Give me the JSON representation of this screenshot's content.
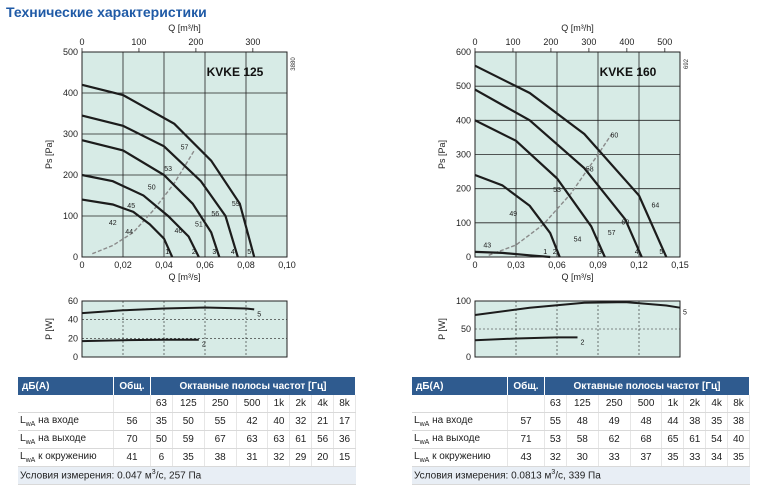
{
  "title": "Технические характеристики",
  "chart_data": [
    {
      "type": "line",
      "title": "KVKE 125",
      "code": "3880",
      "xlabel": "Q [m³/s]",
      "xlabel_top": "Q [m³/h]",
      "ylabel": "Ps [Pa]",
      "xlim": [
        0,
        0.1
      ],
      "ylim": [
        0,
        500
      ],
      "x_ticks": [
        "0",
        "0,02",
        "0,04",
        "0,06",
        "0,08",
        "0,10"
      ],
      "y_ticks": [
        "0",
        "100",
        "200",
        "300",
        "400",
        "500"
      ],
      "top_ticks": [
        "0",
        "100",
        "200",
        "300"
      ],
      "top_scale_max": 360,
      "grid": true,
      "series": [
        {
          "label_end": "1",
          "points": [
            [
              0,
              140
            ],
            [
              0.015,
              128
            ],
            [
              0.025,
              110
            ],
            [
              0.033,
              80
            ],
            [
              0.04,
              45
            ],
            [
              0.044,
              0
            ]
          ]
        },
        {
          "label_end": "2",
          "points": [
            [
              0,
              200
            ],
            [
              0.015,
              185
            ],
            [
              0.03,
              150
            ],
            [
              0.042,
              100
            ],
            [
              0.052,
              50
            ],
            [
              0.057,
              0
            ]
          ]
        },
        {
          "label_end": "3",
          "points": [
            [
              0,
              285
            ],
            [
              0.02,
              260
            ],
            [
              0.04,
              200
            ],
            [
              0.054,
              130
            ],
            [
              0.063,
              60
            ],
            [
              0.067,
              0
            ]
          ]
        },
        {
          "label_end": "4",
          "points": [
            [
              0,
              345
            ],
            [
              0.02,
              320
            ],
            [
              0.04,
              270
            ],
            [
              0.058,
              185
            ],
            [
              0.07,
              100
            ],
            [
              0.076,
              0
            ]
          ]
        },
        {
          "label_end": "5",
          "points": [
            [
              0,
              420
            ],
            [
              0.02,
              395
            ],
            [
              0.045,
              325
            ],
            [
              0.063,
              235
            ],
            [
              0.077,
              130
            ],
            [
              0.084,
              0
            ]
          ]
        }
      ],
      "system_curve": {
        "points": [
          [
            0.005,
            8
          ],
          [
            0.015,
            28
          ],
          [
            0.025,
            60
          ],
          [
            0.035,
            115
          ],
          [
            0.045,
            180
          ],
          [
            0.055,
            262
          ]
        ]
      },
      "sound_labels": [
        {
          "text": "42",
          "x": 0.015,
          "y": 78
        },
        {
          "text": "44",
          "x": 0.023,
          "y": 56
        },
        {
          "text": "45",
          "x": 0.024,
          "y": 120
        },
        {
          "text": "46",
          "x": 0.047,
          "y": 58
        },
        {
          "text": "50",
          "x": 0.034,
          "y": 165
        },
        {
          "text": "51",
          "x": 0.057,
          "y": 75
        },
        {
          "text": "53",
          "x": 0.042,
          "y": 210
        },
        {
          "text": "56",
          "x": 0.065,
          "y": 100
        },
        {
          "text": "57",
          "x": 0.05,
          "y": 262
        },
        {
          "text": "59",
          "x": 0.075,
          "y": 125
        }
      ],
      "power_chart": {
        "ylabel": "P [W]",
        "ylim": [
          0,
          60
        ],
        "y_ticks": [
          "0",
          "20",
          "40",
          "60"
        ],
        "series": [
          {
            "label_end": "5",
            "points": [
              [
                0,
                47
              ],
              [
                0.02,
                50
              ],
              [
                0.04,
                52
              ],
              [
                0.06,
                53
              ],
              [
                0.08,
                52
              ],
              [
                0.084,
                51
              ]
            ]
          },
          {
            "label_end": "2",
            "points": [
              [
                0,
                17
              ],
              [
                0.02,
                18
              ],
              [
                0.04,
                18.5
              ],
              [
                0.057,
                18.5
              ]
            ]
          }
        ]
      }
    },
    {
      "type": "line",
      "title": "KVKE 160",
      "code": "692",
      "xlabel": "Q [m³/s]",
      "xlabel_top": "Q [m³/h]",
      "ylabel": "Ps [Pa]",
      "xlim": [
        0,
        0.15
      ],
      "ylim": [
        0,
        600
      ],
      "x_ticks": [
        "0",
        "0,03",
        "0,06",
        "0,09",
        "0,12",
        "0,15"
      ],
      "y_ticks": [
        "0",
        "100",
        "200",
        "300",
        "400",
        "500",
        "600"
      ],
      "top_ticks": [
        "0",
        "100",
        "200",
        "300",
        "400",
        "500"
      ],
      "top_scale_max": 540,
      "grid": true,
      "series": [
        {
          "label_end": "1",
          "points": [
            [
              0,
              15
            ],
            [
              0.02,
              12
            ],
            [
              0.04,
              5
            ],
            [
              0.055,
              0
            ]
          ]
        },
        {
          "label_end": "2",
          "points": [
            [
              0,
              240
            ],
            [
              0.02,
              210
            ],
            [
              0.04,
              150
            ],
            [
              0.055,
              70
            ],
            [
              0.062,
              0
            ]
          ]
        },
        {
          "label_end": "3",
          "points": [
            [
              0,
              400
            ],
            [
              0.03,
              340
            ],
            [
              0.06,
              230
            ],
            [
              0.085,
              90
            ],
            [
              0.095,
              0
            ]
          ]
        },
        {
          "label_end": "4",
          "points": [
            [
              0,
              490
            ],
            [
              0.04,
              400
            ],
            [
              0.08,
              260
            ],
            [
              0.11,
              110
            ],
            [
              0.122,
              0
            ]
          ]
        },
        {
          "label_end": "5",
          "points": [
            [
              0,
              560
            ],
            [
              0.04,
              480
            ],
            [
              0.08,
              360
            ],
            [
              0.12,
              180
            ],
            [
              0.14,
              0
            ]
          ]
        }
      ],
      "system_curve": {
        "points": [
          [
            0.01,
            5
          ],
          [
            0.03,
            35
          ],
          [
            0.05,
            95
          ],
          [
            0.07,
            185
          ],
          [
            0.09,
            300
          ],
          [
            0.1,
            360
          ]
        ]
      },
      "sound_labels": [
        {
          "text": "43",
          "x": 0.009,
          "y": 28
        },
        {
          "text": "49",
          "x": 0.028,
          "y": 120
        },
        {
          "text": "53",
          "x": 0.06,
          "y": 190
        },
        {
          "text": "54",
          "x": 0.075,
          "y": 45
        },
        {
          "text": "57",
          "x": 0.1,
          "y": 65
        },
        {
          "text": "58",
          "x": 0.084,
          "y": 250
        },
        {
          "text": "60",
          "x": 0.11,
          "y": 95
        },
        {
          "text": "60",
          "x": 0.102,
          "y": 350
        },
        {
          "text": "64",
          "x": 0.132,
          "y": 145
        }
      ],
      "power_chart": {
        "ylabel": "P [W]",
        "ylim": [
          0,
          100
        ],
        "y_ticks": [
          "0",
          "50",
          "100"
        ],
        "series": [
          {
            "label_end": "5",
            "points": [
              [
                0,
                75
              ],
              [
                0.04,
                88
              ],
              [
                0.08,
                97
              ],
              [
                0.11,
                98
              ],
              [
                0.14,
                92
              ],
              [
                0.15,
                88
              ]
            ]
          },
          {
            "label_end": "2",
            "points": [
              [
                0,
                30
              ],
              [
                0.03,
                33
              ],
              [
                0.06,
                35
              ],
              [
                0.075,
                35
              ]
            ]
          }
        ]
      }
    }
  ],
  "tables": [
    {
      "head": {
        "db": "дБ(A)",
        "total": "Общ.",
        "bands": "Октавные полосы частот [Гц]"
      },
      "freqs": [
        "63",
        "125",
        "250",
        "500",
        "1k",
        "2k",
        "4k",
        "8k"
      ],
      "rows": [
        {
          "label": "L",
          "sub": "wA",
          "rest": " на входе",
          "total": "56",
          "vals": [
            "35",
            "50",
            "55",
            "42",
            "40",
            "32",
            "21",
            "17"
          ]
        },
        {
          "label": "L",
          "sub": "wA",
          "rest": " на выходе",
          "total": "70",
          "vals": [
            "50",
            "59",
            "67",
            "63",
            "63",
            "61",
            "56",
            "36"
          ]
        },
        {
          "label": "L",
          "sub": "wA",
          "rest": " к окружению",
          "total": "41",
          "vals": [
            "6",
            "35",
            "38",
            "31",
            "32",
            "29",
            "20",
            "15"
          ]
        }
      ],
      "condition_pre": "Условия измерения: 0.047 м",
      "condition_sup": "3",
      "condition_post": "/с, 257 Па"
    },
    {
      "head": {
        "db": "дБ(A)",
        "total": "Общ.",
        "bands": "Октавные полосы частот [Гц]"
      },
      "freqs": [
        "63",
        "125",
        "250",
        "500",
        "1k",
        "2k",
        "4k",
        "8k"
      ],
      "rows": [
        {
          "label": "L",
          "sub": "wA",
          "rest": " на входе",
          "total": "57",
          "vals": [
            "55",
            "48",
            "49",
            "48",
            "44",
            "38",
            "35",
            "38"
          ]
        },
        {
          "label": "L",
          "sub": "wA",
          "rest": " на выходе",
          "total": "71",
          "vals": [
            "53",
            "58",
            "62",
            "68",
            "65",
            "61",
            "54",
            "40"
          ]
        },
        {
          "label": "L",
          "sub": "wA",
          "rest": " к окружению",
          "total": "43",
          "vals": [
            "32",
            "30",
            "33",
            "37",
            "35",
            "33",
            "34",
            "35"
          ]
        }
      ],
      "condition_pre": "Условия измерения: 0.0813 м",
      "condition_sup": "3",
      "condition_post": "/с, 339 Па"
    }
  ]
}
